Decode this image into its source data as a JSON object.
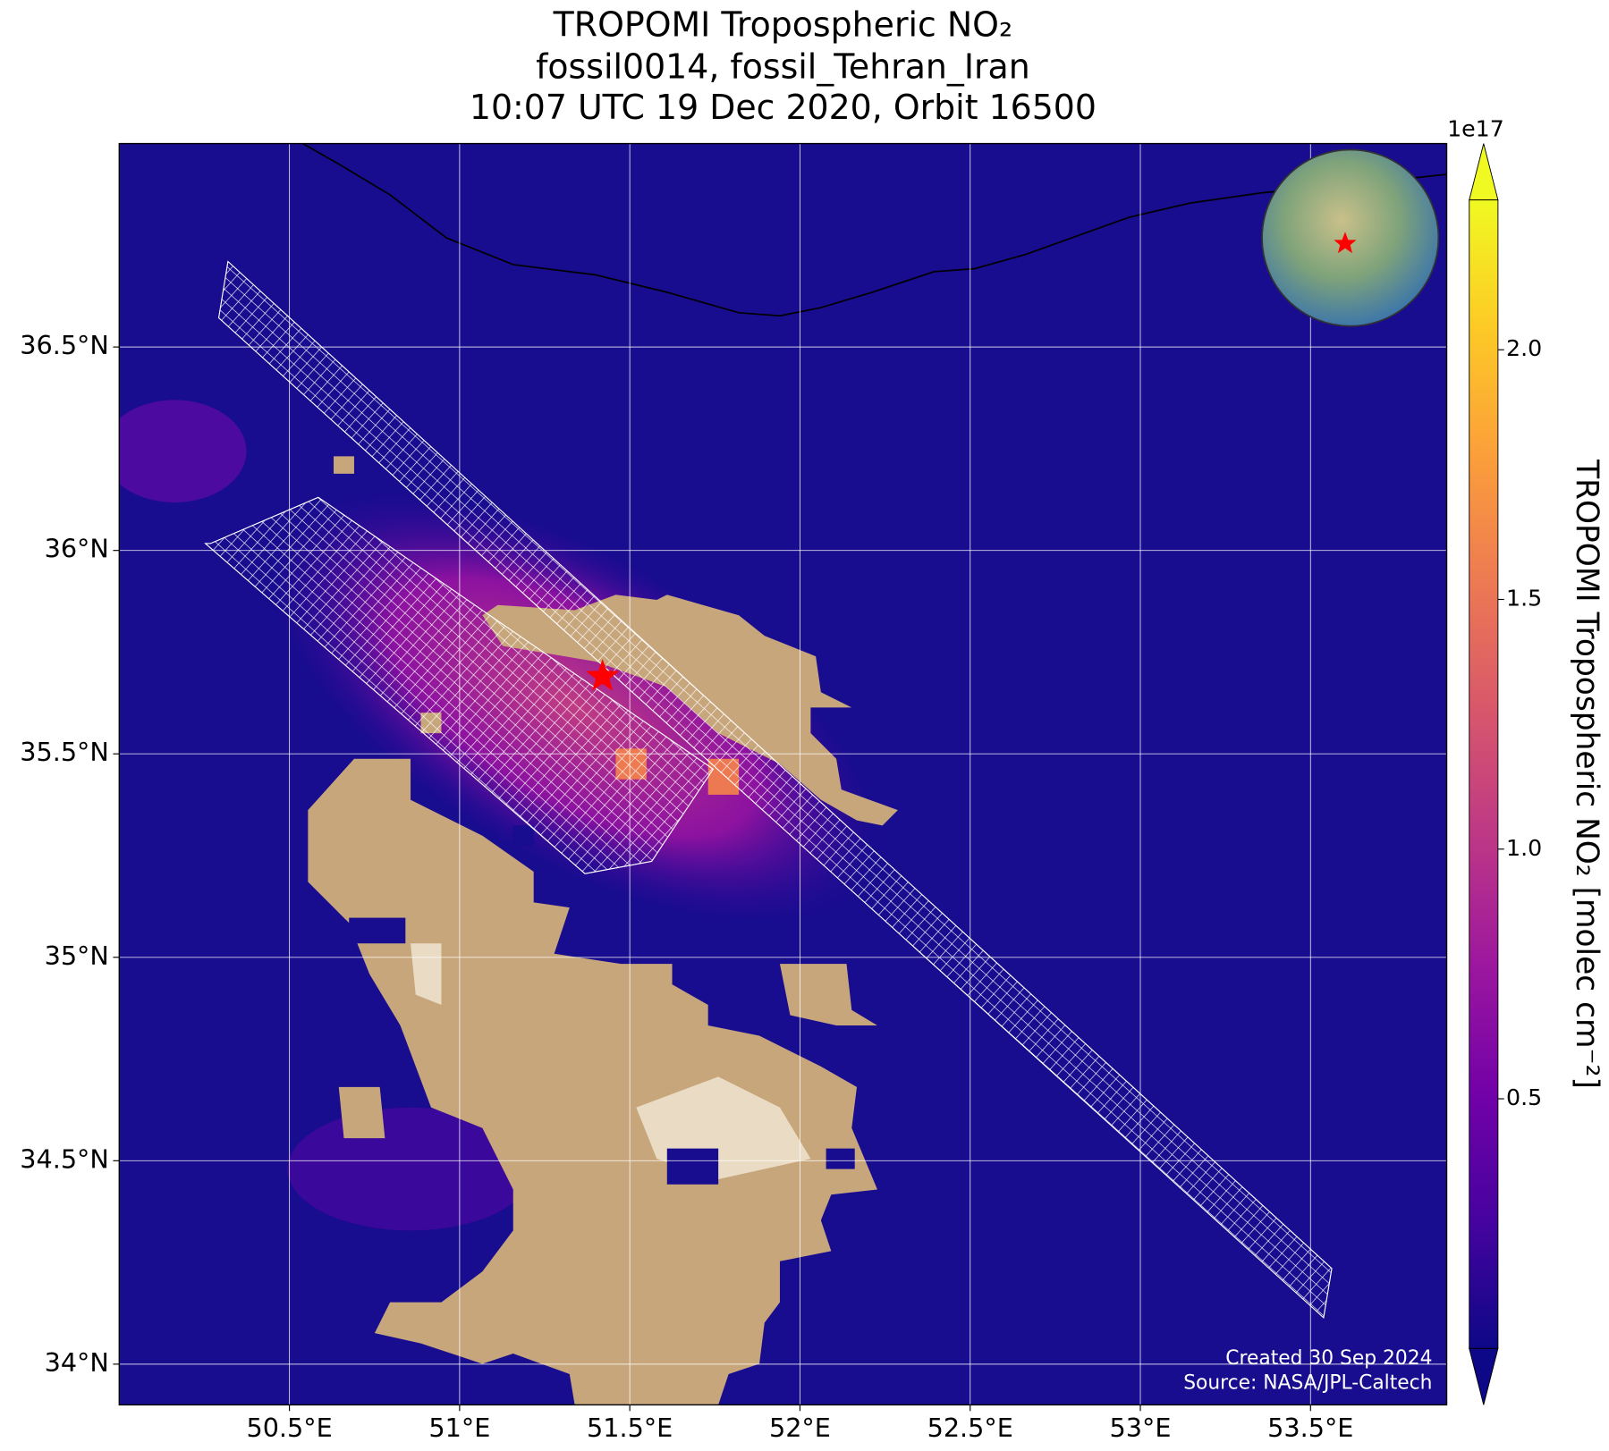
{
  "chart_data": {
    "type": "map",
    "title": [
      "TROPOMI Tropospheric NO₂",
      "fossil0014, fossil_Tehran_Iran",
      "10:07 UTC 19 Dec 2020, Orbit 16500"
    ],
    "xlim": [
      50.0,
      53.9
    ],
    "ylim": [
      33.9,
      37.0
    ],
    "xticks": [
      {
        "value": 50.5,
        "label": "50.5°E"
      },
      {
        "value": 51,
        "label": "51°E"
      },
      {
        "value": 51.5,
        "label": "51.5°E"
      },
      {
        "value": 52,
        "label": "52°E"
      },
      {
        "value": 52.5,
        "label": "52.5°E"
      },
      {
        "value": 53,
        "label": "53°E"
      },
      {
        "value": 53.5,
        "label": "53.5°E"
      }
    ],
    "yticks": [
      {
        "value": 34,
        "label": "34°N"
      },
      {
        "value": 34.5,
        "label": "34.5°N"
      },
      {
        "value": 35,
        "label": "35°N"
      },
      {
        "value": 35.5,
        "label": "35.5°N"
      },
      {
        "value": 36,
        "label": "36°N"
      },
      {
        "value": 36.5,
        "label": "36.5°N"
      }
    ],
    "grid": true,
    "site": {
      "lon": 51.42,
      "lat": 35.69,
      "color": "#ff0000"
    },
    "colorbar": {
      "label": "TROPOMI Tropospheric NO₂ [molec cm⁻²]",
      "offset_label": "1e17",
      "lim": [
        0,
        2.3
      ],
      "ticks": [
        0.5,
        {
          "value": 1,
          "label": "1.0"
        },
        1.5,
        {
          "value": 2,
          "label": "2.0"
        }
      ],
      "colormap": [
        "#0d0887",
        "#46039f",
        "#7201a8",
        "#9c179e",
        "#bd3786",
        "#d8576b",
        "#ed7953",
        "#fb9f3a",
        "#fdca26",
        "#f0f921"
      ]
    },
    "annotations": [
      "Created 30 Sep 2024",
      "Source: NASA/JPL-Caltech"
    ]
  }
}
